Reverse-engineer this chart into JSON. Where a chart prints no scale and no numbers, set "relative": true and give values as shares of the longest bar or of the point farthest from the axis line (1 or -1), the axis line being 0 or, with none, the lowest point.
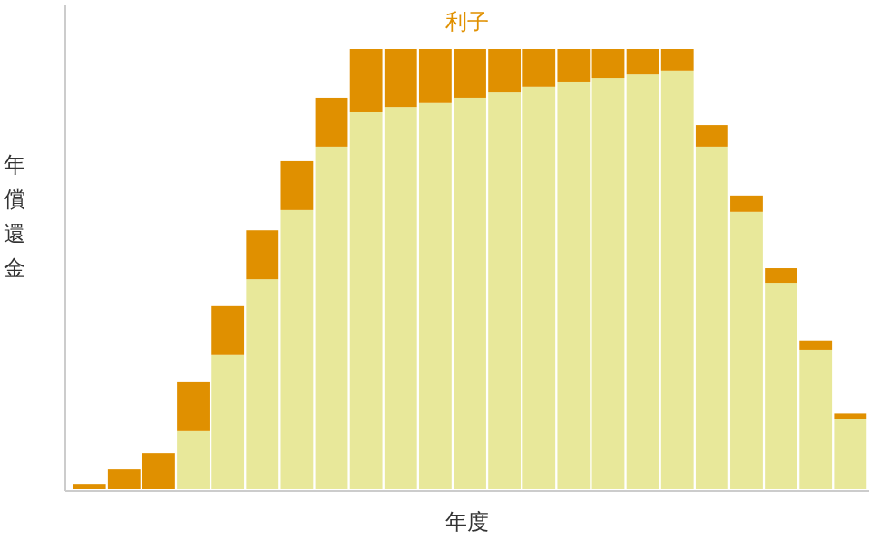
{
  "chart_data": {
    "type": "bar",
    "relative": true,
    "stacked": true,
    "xlabel": "年度",
    "ylabel": "年償還金",
    "legend": "top",
    "categories": [
      null,
      null,
      null,
      null,
      null,
      null,
      null,
      null,
      null,
      null,
      null,
      null,
      null,
      null,
      null,
      null,
      null,
      null,
      null,
      null,
      null,
      null,
      null
    ],
    "series": [
      {
        "color": "#e8e89a",
        "values": [
          0,
          0,
          0,
          0.132,
          0.305,
          0.477,
          0.634,
          0.778,
          0.856,
          0.868,
          0.877,
          0.889,
          0.901,
          0.914,
          0.926,
          0.934,
          0.942,
          0.951,
          0.778,
          0.63,
          0.469,
          0.317,
          0.16
        ]
      },
      {
        "name": "利子",
        "color": "#e09000",
        "values": [
          0.012,
          0.045,
          0.082,
          0.111,
          0.111,
          0.111,
          0.111,
          0.111,
          0.144,
          0.132,
          0.123,
          0.111,
          0.099,
          0.086,
          0.074,
          0.066,
          0.058,
          0.049,
          0.049,
          0.037,
          0.033,
          0.021,
          0.012
        ]
      }
    ]
  }
}
